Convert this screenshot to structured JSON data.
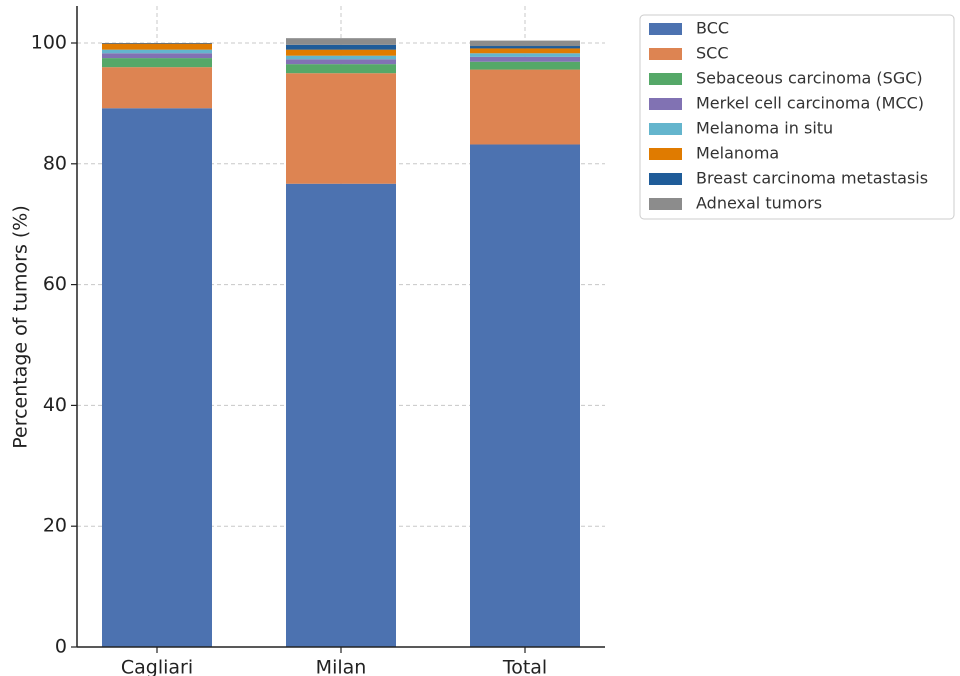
{
  "chart_data": {
    "type": "bar",
    "stacked": true,
    "categories": [
      "Cagliari",
      "Milan",
      "Total"
    ],
    "ylabel": "Percentage of tumors (%)",
    "xlabel": "",
    "ylim": [
      0,
      106
    ],
    "yticks": [
      0,
      20,
      40,
      60,
      80,
      100
    ],
    "grid": true,
    "legend_position": "outside-top-right",
    "series": [
      {
        "name": "BCC",
        "color": "#4c72b0",
        "values": [
          89.2,
          76.7,
          83.2
        ]
      },
      {
        "name": "SCC",
        "color": "#dd8452",
        "values": [
          6.8,
          18.3,
          12.4
        ]
      },
      {
        "name": "Sebaceous carcinoma (SGC)",
        "color": "#55a868",
        "values": [
          1.5,
          1.5,
          1.3
        ]
      },
      {
        "name": "Merkel cell carcinoma (MCC)",
        "color": "#8172b3",
        "values": [
          0.8,
          0.8,
          0.8
        ]
      },
      {
        "name": "Melanoma in situ",
        "color": "#64b5cd",
        "values": [
          0.6,
          0.6,
          0.6
        ]
      },
      {
        "name": "Melanoma",
        "color": "#e07b00",
        "values": [
          1.0,
          1.0,
          0.8
        ]
      },
      {
        "name": "Breast carcinoma metastasis",
        "color": "#1f5c99",
        "values": [
          0.1,
          0.8,
          0.4
        ]
      },
      {
        "name": "Adnexal tumors",
        "color": "#8c8c8c",
        "values": [
          0.0,
          1.1,
          0.9
        ]
      }
    ]
  }
}
